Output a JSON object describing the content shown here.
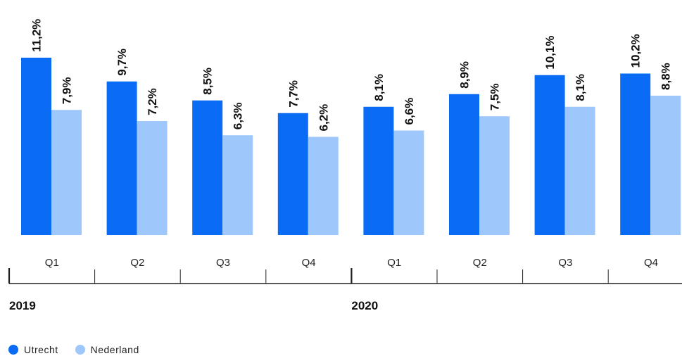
{
  "chart_data": {
    "type": "bar",
    "categories": [
      "Q1",
      "Q2",
      "Q3",
      "Q4",
      "Q1",
      "Q2",
      "Q3",
      "Q4"
    ],
    "groups": [
      {
        "label": "2019",
        "categories": [
          "Q1",
          "Q2",
          "Q3",
          "Q4"
        ]
      },
      {
        "label": "2020",
        "categories": [
          "Q1",
          "Q2",
          "Q3",
          "Q4"
        ]
      }
    ],
    "series": [
      {
        "name": "Utrecht",
        "color": "#0a6cf5",
        "values": [
          11.2,
          9.7,
          8.5,
          7.7,
          8.1,
          8.9,
          10.1,
          10.2
        ],
        "labels": [
          "11,2%",
          "9,7%",
          "8,5%",
          "7,7%",
          "8,1%",
          "8,9%",
          "10,1%",
          "10,2%"
        ]
      },
      {
        "name": "Nederland",
        "color": "#9ec7fb",
        "values": [
          7.9,
          7.2,
          6.3,
          6.2,
          6.6,
          7.5,
          8.1,
          8.8
        ],
        "labels": [
          "7,9%",
          "7,2%",
          "6,3%",
          "6,2%",
          "6,6%",
          "7,5%",
          "8,1%",
          "8,8%"
        ]
      }
    ],
    "title": "",
    "xlabel": "",
    "ylabel": "",
    "ylim": [
      0,
      11.2
    ],
    "grid": false,
    "legend_position": "bottom-left"
  }
}
